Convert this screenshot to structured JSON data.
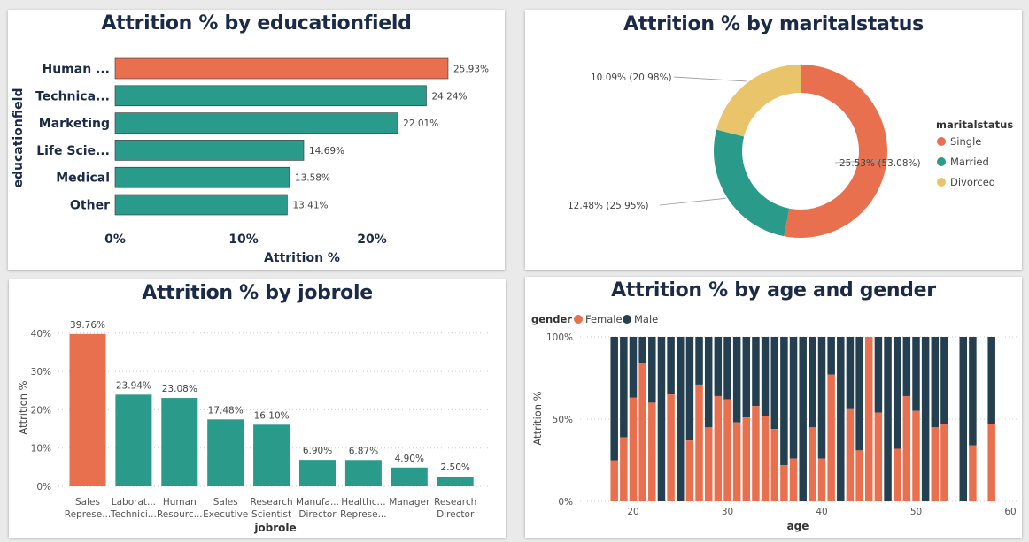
{
  "colors": {
    "highlight": "#E8704F",
    "teal": "#2A9A8A",
    "gold": "#E9C46A",
    "navy": "#233F50",
    "title": "#1B2A47"
  },
  "chart_data": [
    {
      "type": "bar",
      "orientation": "horizontal",
      "title": "Attrition % by educationfield",
      "xlabel": "Attrition %",
      "ylabel": "educationfield",
      "xticks": [
        "0%",
        "10%",
        "20%"
      ],
      "xlim": [
        0,
        27
      ],
      "categories": [
        "Human ...",
        "Technica...",
        "Marketing",
        "Life Scie...",
        "Medical",
        "Other"
      ],
      "values": [
        25.93,
        24.24,
        22.01,
        14.69,
        13.58,
        13.41
      ],
      "labels": [
        "25.93%",
        "24.24%",
        "22.01%",
        "14.69%",
        "13.58%",
        "13.41%"
      ],
      "highlight_index": 0,
      "grid": false
    },
    {
      "type": "pie",
      "subtype": "donut",
      "title": "Attrition % by maritalstatus",
      "legend_title": "maritalstatus",
      "legend_position": "right",
      "categories": [
        "Single",
        "Married",
        "Divorced"
      ],
      "values": [
        53.08,
        25.95,
        20.98
      ],
      "labels": [
        "25.53% (53.08%)",
        "12.48% (25.95%)",
        "10.09% (20.98%)"
      ],
      "colors": [
        "#E8704F",
        "#2A9A8A",
        "#E9C46A"
      ]
    },
    {
      "type": "bar",
      "orientation": "vertical",
      "title": "Attrition % by jobrole",
      "xlabel": "jobrole",
      "ylabel": "Attrition %",
      "yticks": [
        "0%",
        "10%",
        "20%",
        "30%",
        "40%"
      ],
      "ylim": [
        0,
        40
      ],
      "categories": [
        [
          "Sales",
          "Represe..."
        ],
        [
          "Laborat...",
          "Technici..."
        ],
        [
          "Human",
          "Resourc..."
        ],
        [
          "Sales",
          "Executive"
        ],
        [
          "Research",
          "Scientist"
        ],
        [
          "Manufa...",
          "Director"
        ],
        [
          "Healthc...",
          "Represe..."
        ],
        [
          "Manager"
        ],
        [
          "Research",
          "Director"
        ]
      ],
      "values": [
        39.76,
        23.94,
        23.08,
        17.48,
        16.1,
        6.9,
        6.87,
        4.9,
        2.5
      ],
      "labels": [
        "39.76%",
        "23.94%",
        "23.08%",
        "17.48%",
        "16.10%",
        "6.90%",
        "6.87%",
        "4.90%",
        "2.50%"
      ],
      "highlight_index": 0,
      "grid": true
    },
    {
      "type": "bar",
      "subtype": "100% stacked column",
      "title": "Attrition % by age and gender",
      "xlabel": "age",
      "ylabel": "Attrition %",
      "legend_title": "gender",
      "legend_position": "top-left",
      "series_names": [
        "Female",
        "Male"
      ],
      "xticks": [
        20,
        30,
        40,
        50,
        60
      ],
      "xlim": [
        16,
        60
      ],
      "yticks": [
        "0%",
        "50%",
        "100%"
      ],
      "ylim": [
        0,
        100
      ],
      "x": [
        18,
        19,
        20,
        21,
        22,
        23,
        24,
        25,
        26,
        27,
        28,
        29,
        30,
        31,
        32,
        33,
        34,
        35,
        36,
        37,
        38,
        39,
        40,
        41,
        42,
        43,
        44,
        45,
        46,
        47,
        48,
        49,
        50,
        51,
        52,
        53,
        55,
        56,
        58
      ],
      "female": [
        25,
        39,
        63,
        84,
        60,
        0,
        65,
        0,
        37,
        71,
        45,
        64,
        62,
        48,
        51,
        58,
        52,
        44,
        22,
        26,
        0,
        45,
        26,
        77,
        0,
        56,
        31,
        100,
        54,
        0,
        32,
        64,
        55,
        0,
        45,
        47,
        0,
        34,
        47
      ],
      "grid": true
    }
  ]
}
